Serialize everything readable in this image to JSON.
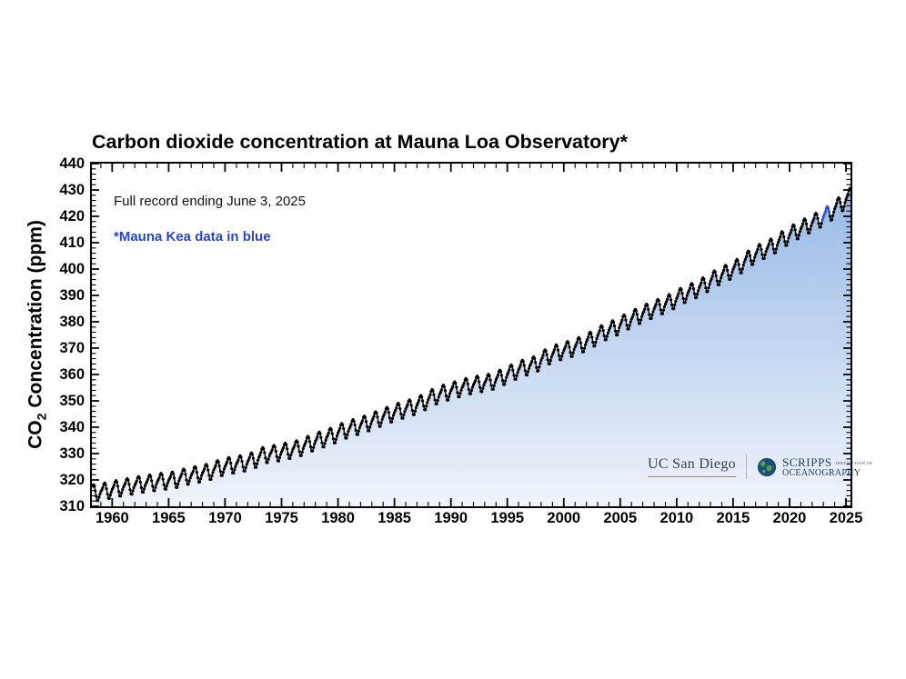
{
  "chart": {
    "title": "Carbon dioxide concentration at Mauna Loa Observatory*",
    "ylabel_pre": "CO",
    "ylabel_sub": "2",
    "ylabel_post": " Concentration (ppm)",
    "note_record": "Full record ending June 3, 2025",
    "note_mauna_kea": "*Mauna Kea data in blue"
  },
  "logos": {
    "ucsd": "UC San Diego",
    "scripps_line1": "SCRIPPS",
    "scripps_small": "INSTITUTION OF",
    "scripps_line2": "OCEANOGRAPHY"
  },
  "chart_data": {
    "type": "line",
    "title": "Carbon dioxide concentration at Mauna Loa Observatory*",
    "xlabel": "",
    "ylabel": "CO2 Concentration (ppm)",
    "xlim": [
      1958.2,
      2025.4
    ],
    "ylim": [
      310,
      440
    ],
    "x_ticks": [
      1960,
      1965,
      1970,
      1975,
      1980,
      1985,
      1990,
      1995,
      2000,
      2005,
      2010,
      2015,
      2020,
      2025
    ],
    "x_minor_step": 1,
    "y_ticks": [
      310,
      320,
      330,
      340,
      350,
      360,
      370,
      380,
      390,
      400,
      410,
      420,
      430,
      440
    ],
    "y_minor_step": 2,
    "grid": false,
    "legend": "none",
    "series_start": 1958.25,
    "series_end": 2025.42,
    "annual_means": {
      "start_year": 1958,
      "values": [
        315.2,
        315.97,
        316.91,
        317.64,
        318.45,
        318.99,
        319.62,
        320.04,
        321.37,
        322.18,
        323.05,
        324.62,
        325.68,
        326.32,
        327.46,
        329.68,
        330.19,
        331.12,
        332.03,
        333.84,
        335.41,
        336.84,
        338.76,
        340.12,
        341.48,
        343.15,
        344.85,
        346.35,
        347.61,
        349.31,
        351.69,
        353.2,
        354.45,
        355.7,
        356.54,
        357.21,
        358.96,
        360.97,
        362.74,
        363.88,
        366.84,
        368.54,
        369.71,
        371.32,
        373.45,
        375.98,
        377.7,
        379.98,
        382.09,
        384.02,
        385.83,
        387.64,
        390.1,
        391.85,
        394.06,
        396.74,
        398.81,
        401.01,
        404.41,
        406.76,
        408.72,
        411.65,
        414.21,
        416.41,
        418.53,
        421.08,
        424.61,
        428.2
      ]
    },
    "seasonal_cycle": [
      0.0,
      0.66,
      1.43,
      2.54,
      3.0,
      2.34,
      0.7,
      -1.42,
      -3.1,
      -3.24,
      -2.05,
      -0.9
    ],
    "mauna_kea_period": {
      "start": 2022.9,
      "end": 2023.55
    },
    "colors": {
      "line": "#000000",
      "mauna_kea": "#3050cc",
      "fill_top": "#97b9e6",
      "fill_bottom": "#f0f4fb",
      "note_blue": "#2646d4",
      "axis": "#000000"
    }
  }
}
